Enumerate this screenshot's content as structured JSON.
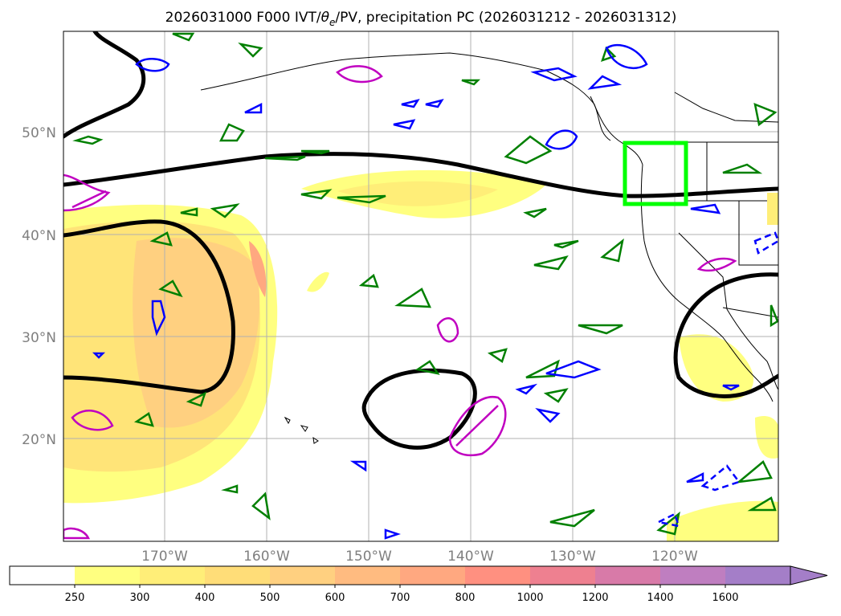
{
  "title": "2026031000 F000 IVT/θe/PV, precipitation PC (2026031212 - 2026031312)",
  "title_parts": {
    "pre": "2026031000 F000 IVT/",
    "theta": "θ",
    "sub": "e",
    "post": "/PV, precipitation PC (2026031212 - 2026031312)"
  },
  "map": {
    "lat_labels": [
      "50°N",
      "40°N",
      "30°N",
      "20°N"
    ],
    "lon_labels": [
      "170°W",
      "160°W",
      "150°W",
      "140°W",
      "130°W",
      "120°W"
    ]
  },
  "colorbar": {
    "levels": [
      "250",
      "300",
      "400",
      "500",
      "600",
      "700",
      "800",
      "1000",
      "1200",
      "1400",
      "1600"
    ],
    "colors": [
      "#ffffff",
      "#ffff80",
      "#ffee78",
      "#ffdd78",
      "#ffd080",
      "#ffbb80",
      "#ffa880",
      "#ff9080",
      "#ee8090",
      "#d87aa8",
      "#bf7ec0",
      "#a47ec8"
    ],
    "extend": "max"
  },
  "colors": {
    "theta_e": "#000000",
    "pv_positive": "#008000",
    "pv_negative": "#0000ff",
    "ivt_anomaly": "#c000c0",
    "highlight_box": "#00ff00"
  }
}
